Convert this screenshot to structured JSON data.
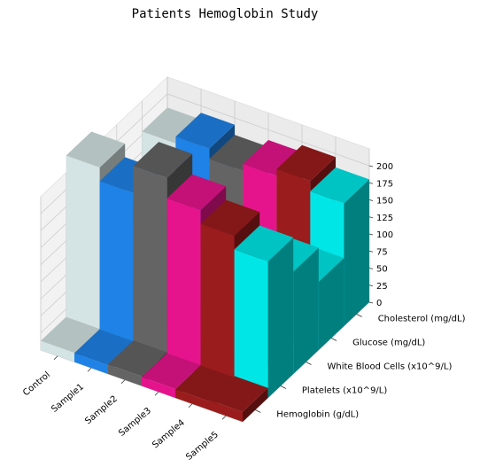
{
  "chart_data": {
    "type": "bar",
    "projection": "3d",
    "title": "Patients Hemoglobin Study",
    "categories": [
      "Control",
      "Sample1",
      "Sample2",
      "Sample3",
      "Sample4",
      "Sample5"
    ],
    "depth_categories": [
      "Hemoglobin (g/dL)",
      "Platelets (x10^9/L)",
      "White Blood Cells (x10^9/L)",
      "Glucose (mg/dL)",
      "Cholesterol (mg/dL)"
    ],
    "zlim": [
      0,
      225
    ],
    "zticks": [
      0,
      25,
      50,
      75,
      100,
      125,
      150,
      175,
      200
    ],
    "grid": true,
    "series": [
      {
        "name": "Hemoglobin (g/dL)",
        "values": [
          13.5,
          12.8,
          14.2,
          13.0,
          12.5,
          14.5
        ]
      },
      {
        "name": "Platelets (x10^9/L)",
        "values": [
          250,
          230,
          270,
          240,
          220,
          200
        ]
      },
      {
        "name": "White Blood Cells (x10^9/L)",
        "values": [
          7.5,
          8.0,
          7.8,
          8.2,
          7.9,
          150
        ]
      },
      {
        "name": "Glucose (mg/dL)",
        "values": [
          90,
          85,
          95,
          88,
          92,
          100
        ]
      },
      {
        "name": "Cholesterol (mg/dL)",
        "values": [
          180,
          190,
          175,
          185,
          195,
          180
        ]
      }
    ],
    "colors": [
      "#d4e3e3",
      "#1e82e6",
      "#646464",
      "#e6148c",
      "#9b1c1c",
      "#00e6e6"
    ]
  }
}
